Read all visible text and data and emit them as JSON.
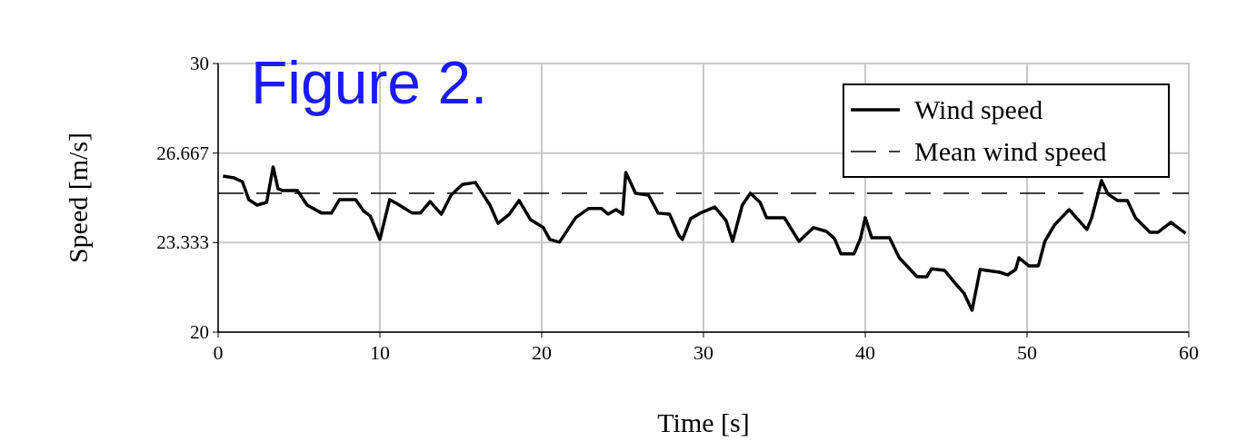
{
  "chart_data": {
    "type": "line",
    "title": "Figure 2.",
    "xlabel": "Time [s]",
    "ylabel": "Speed [m/s]",
    "xlim": [
      0,
      60
    ],
    "xticks": [
      0,
      10,
      20,
      30,
      40,
      50,
      60
    ],
    "ylim": [
      20,
      30
    ],
    "yticks": [
      20,
      {
        "value": 23.333,
        "label": "23.333"
      },
      {
        "value": 26.667,
        "label": "26.667"
      },
      30
    ],
    "grid": true,
    "legend": "top right",
    "line_style": "solid",
    "series": [
      {
        "name": "Wind speed",
        "color": "#000000",
        "x": [
          0.3,
          1.0,
          1.5,
          1.9,
          2.4,
          3.0,
          3.4,
          3.7,
          4.0,
          4.9,
          5.5,
          6.4,
          7.0,
          7.5,
          8.5,
          9.0,
          9.4,
          10.0,
          10.6,
          11.2,
          12.0,
          12.5,
          13.1,
          13.8,
          14.4,
          15.1,
          15.9,
          16.8,
          17.3,
          18.0,
          18.6,
          19.3,
          20.1,
          20.5,
          21.1,
          22.1,
          22.9,
          23.7,
          24.1,
          24.6,
          25.0,
          25.2,
          25.8,
          26.6,
          27.2,
          27.9,
          28.5,
          28.7,
          29.2,
          29.8,
          30.7,
          31.4,
          31.8,
          32.4,
          32.9,
          33.5,
          33.9,
          35.0,
          35.9,
          36.8,
          37.6,
          38.1,
          38.5,
          39.3,
          39.7,
          40.0,
          40.4,
          41.5,
          42.1,
          43.2,
          43.8,
          44.1,
          44.9,
          45.6,
          46.1,
          46.6,
          47.1,
          48.3,
          48.8,
          49.3,
          49.5,
          50.1,
          50.7,
          51.1,
          51.7,
          52.6,
          53.7,
          54.0,
          54.6,
          55.0,
          55.6,
          56.2,
          56.7,
          57.6,
          58.1,
          58.9,
          59.1,
          59.8
        ],
        "values": [
          25.81,
          25.74,
          25.6,
          24.93,
          24.73,
          24.83,
          26.15,
          25.34,
          25.27,
          25.27,
          24.73,
          24.43,
          24.43,
          24.93,
          24.93,
          24.5,
          24.33,
          23.45,
          24.93,
          24.73,
          24.43,
          24.43,
          24.86,
          24.39,
          25.1,
          25.5,
          25.57,
          24.73,
          24.05,
          24.39,
          24.9,
          24.19,
          23.89,
          23.45,
          23.35,
          24.26,
          24.6,
          24.6,
          24.39,
          24.56,
          24.39,
          25.95,
          25.17,
          25.1,
          24.43,
          24.39,
          23.58,
          23.45,
          24.22,
          24.43,
          24.66,
          24.15,
          23.38,
          24.73,
          25.17,
          24.83,
          24.26,
          24.26,
          23.38,
          23.89,
          23.75,
          23.48,
          22.91,
          22.91,
          23.48,
          24.26,
          23.51,
          23.51,
          22.77,
          22.06,
          22.06,
          22.36,
          22.3,
          21.79,
          21.45,
          20.81,
          22.33,
          22.23,
          22.13,
          22.33,
          22.77,
          22.47,
          22.47,
          23.38,
          23.99,
          24.56,
          23.82,
          24.26,
          25.64,
          25.14,
          24.9,
          24.9,
          24.26,
          23.72,
          23.72,
          24.09,
          23.99,
          23.68
        ]
      }
    ],
    "ref_lines": [
      {
        "axis": "y",
        "value": 25.17,
        "label": "Mean wind speed",
        "color": "#000000",
        "line_style": "dashed"
      }
    ]
  }
}
